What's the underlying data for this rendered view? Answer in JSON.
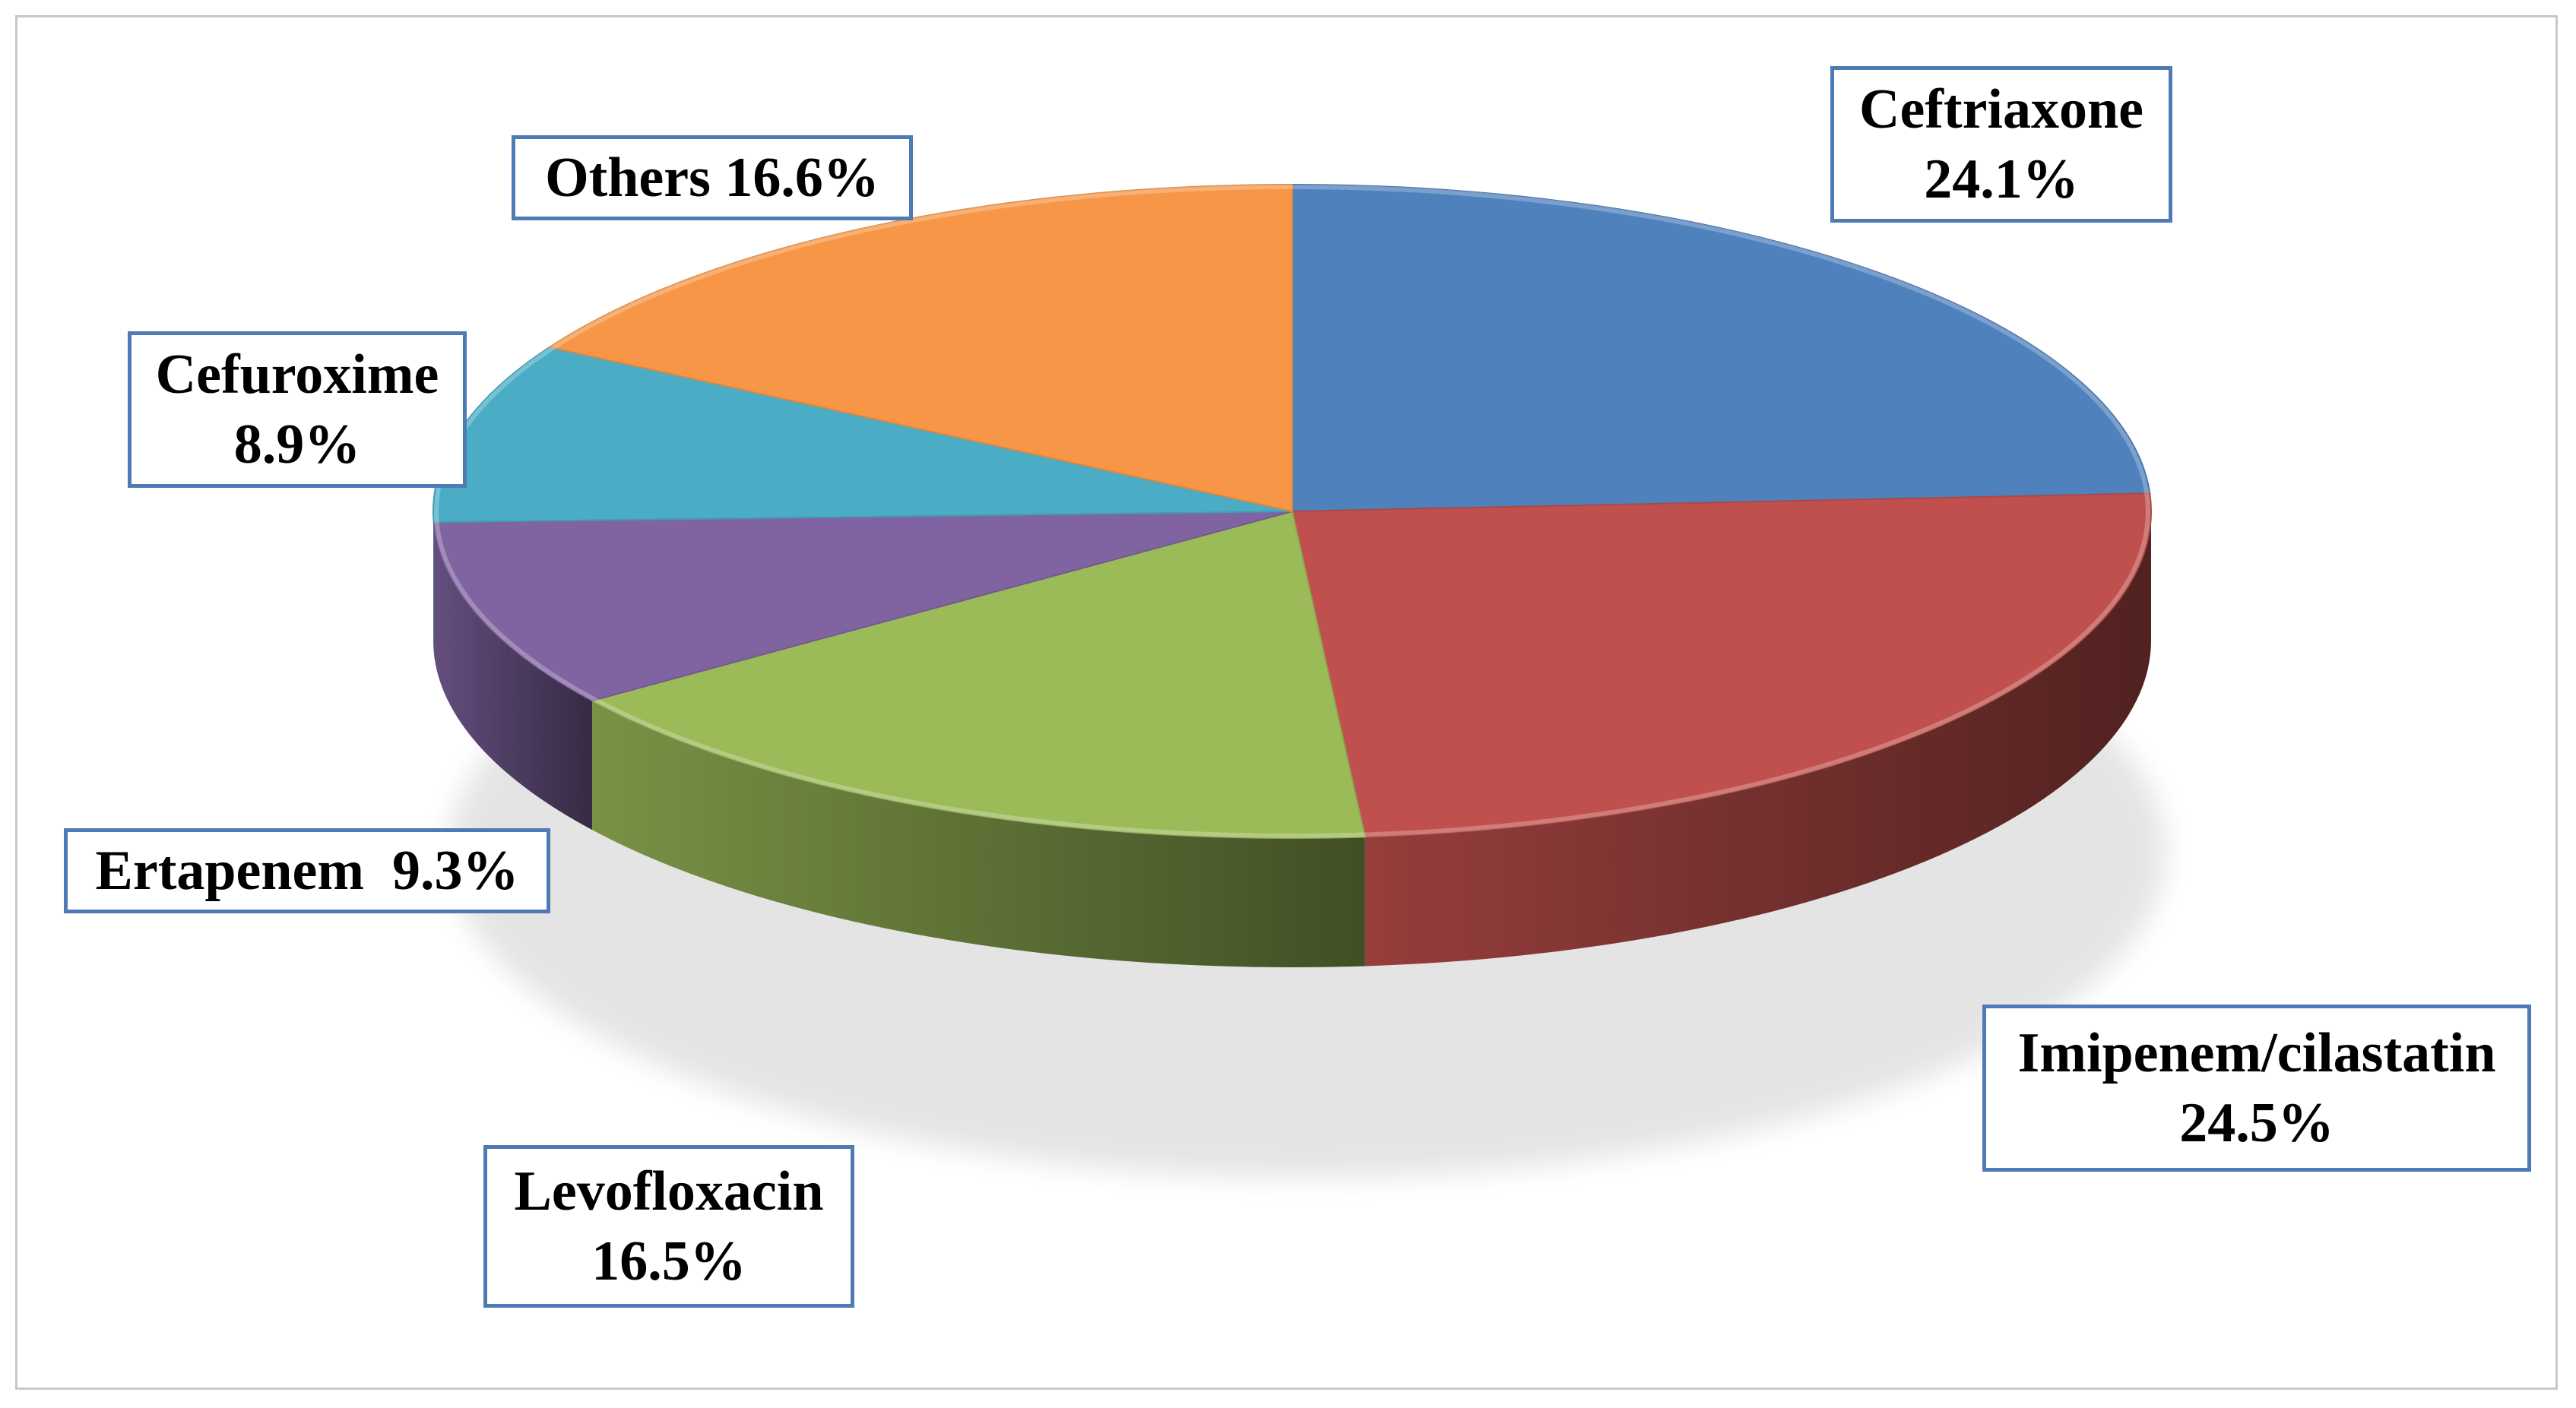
{
  "chart_data": {
    "type": "pie",
    "title": "",
    "style": "3d",
    "legend": "none",
    "slices": [
      {
        "name": "Ceftriaxone",
        "value": 24.1,
        "label": "24.1%",
        "color": "#4f81bd"
      },
      {
        "name": "Imipenem/cilastatin",
        "value": 24.5,
        "label": "24.5%",
        "color": "#c0504d"
      },
      {
        "name": "Levofloxacin",
        "value": 16.5,
        "label": "16.5%",
        "color": "#9bbb59"
      },
      {
        "name": "Ertapenem",
        "value": 9.3,
        "label": "9.3%",
        "color": "#8064a2"
      },
      {
        "name": "Cefuroxime",
        "value": 8.9,
        "label": "8.9%",
        "color": "#4bacc6"
      },
      {
        "name": "Others",
        "value": 16.6,
        "label": "16.6%",
        "color": "#f79646"
      }
    ]
  },
  "labels": {
    "ceftriaxone": {
      "line1": "Ceftriaxone",
      "line2": "24.1%"
    },
    "imipenem": {
      "line1": "Imipenem/cilastatin",
      "line2": "24.5%"
    },
    "levofloxacin": {
      "line1": "Levofloxacin",
      "line2": "16.5%"
    },
    "ertapenem": {
      "line1": "Ertapenem  9.3%"
    },
    "cefuroxime": {
      "line1": "Cefuroxime",
      "line2": "8.9%"
    },
    "others": {
      "line1": "Others 16.6%"
    }
  },
  "colors": {
    "label_border": "#4e7bb4",
    "frame_border": "#c9c9c9"
  }
}
